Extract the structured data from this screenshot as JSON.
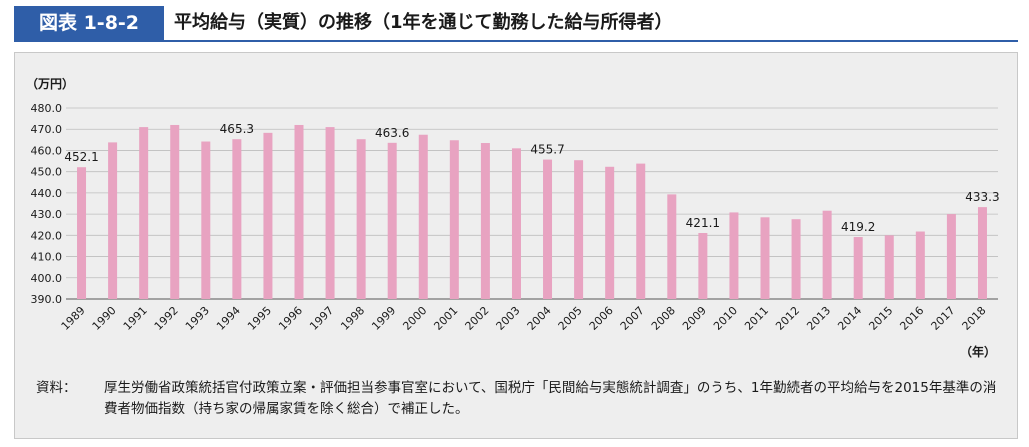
{
  "figure": {
    "label": "図表 1-8-2",
    "title": "平均給与（実質）の推移（1年を通じて勤務した給与所得者）"
  },
  "footnote": {
    "label": "資料：",
    "text": "厚生労働省政策統括官付政策立案・評価担当参事官室において、国税庁「民間給与実態統計調査」のうち、1年勤続者の平均給与を2015年基準の消費者物価指数（持ち家の帰属家賃を除く総合）で補正した。"
  },
  "colors": {
    "header_blue": "#2f5ea8",
    "bar_pink": "#e8a3c1",
    "panel_bg": "#eeeeee"
  },
  "chart_data": {
    "type": "bar",
    "ylabel": "（万円）",
    "xlabel": "（年）",
    "ylim": [
      390.0,
      480.0
    ],
    "yticks": [
      "390.0",
      "400.0",
      "410.0",
      "420.0",
      "430.0",
      "440.0",
      "450.0",
      "460.0",
      "470.0",
      "480.0"
    ],
    "grid": true,
    "categories": [
      "1989",
      "1990",
      "1991",
      "1992",
      "1993",
      "1994",
      "1995",
      "1996",
      "1997",
      "1998",
      "1999",
      "2000",
      "2001",
      "2002",
      "2003",
      "2004",
      "2005",
      "2006",
      "2007",
      "2008",
      "2009",
      "2010",
      "2011",
      "2012",
      "2013",
      "2014",
      "2015",
      "2016",
      "2017",
      "2018"
    ],
    "values": [
      452.1,
      463.8,
      471.0,
      472.0,
      464.2,
      465.3,
      468.3,
      472.0,
      471.0,
      465.3,
      463.6,
      467.4,
      464.8,
      463.5,
      461.0,
      455.7,
      455.4,
      452.3,
      453.8,
      439.3,
      421.1,
      430.8,
      428.5,
      427.6,
      431.6,
      419.2,
      420.0,
      421.8,
      430.0,
      433.3
    ],
    "labels": {
      "1989": "452.1",
      "1994": "465.3",
      "1999": "463.6",
      "2004": "455.7",
      "2009": "421.1",
      "2014": "419.2",
      "2018": "433.3"
    }
  }
}
